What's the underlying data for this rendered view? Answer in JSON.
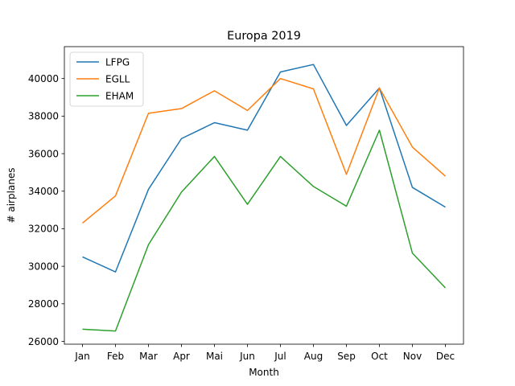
{
  "chart_data": {
    "type": "line",
    "title": "Europa 2019",
    "xlabel": "Month",
    "ylabel": "# airplanes",
    "categories": [
      "Jan",
      "Feb",
      "Mar",
      "Apr",
      "Mai",
      "Jun",
      "Jul",
      "Aug",
      "Sep",
      "Oct",
      "Nov",
      "Dec"
    ],
    "ylim": [
      25850,
      41700
    ],
    "yticks": [
      26000,
      28000,
      30000,
      32000,
      34000,
      36000,
      38000,
      40000
    ],
    "grid": false,
    "legend_position": "top-left",
    "series": [
      {
        "name": "LFPG",
        "color": "#1f77b4",
        "values": [
          30500,
          29700,
          34100,
          36800,
          37650,
          37250,
          40350,
          40750,
          37500,
          39500,
          34200,
          33150
        ]
      },
      {
        "name": "EGLL",
        "color": "#ff7f0e",
        "values": [
          32300,
          33750,
          38150,
          38400,
          39350,
          38300,
          40000,
          39450,
          34900,
          39500,
          36350,
          34800
        ]
      },
      {
        "name": "EHAM",
        "color": "#2ca02c",
        "values": [
          26650,
          26550,
          31150,
          33950,
          35850,
          33300,
          35850,
          34250,
          33200,
          37250,
          30700,
          28850
        ]
      }
    ]
  }
}
